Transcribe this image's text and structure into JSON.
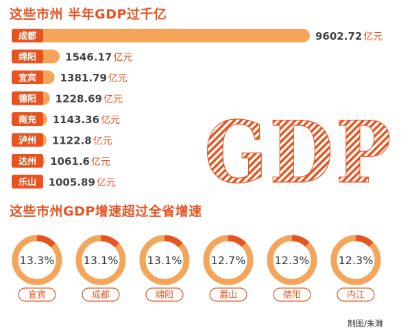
{
  "chart_data": [
    {
      "type": "bar",
      "orientation": "horizontal",
      "title": "这些市州 半年GDP过千亿",
      "categories": [
        "成都",
        "绵阳",
        "宜宾",
        "德阳",
        "南充",
        "泸州",
        "达州",
        "乐山"
      ],
      "values": [
        9602.72,
        1546.17,
        1381.79,
        1228.69,
        1143.36,
        1122.8,
        1061.6,
        1005.89
      ],
      "value_labels": [
        "9602.72",
        "1546.17",
        "1381.79",
        "1228.69",
        "1143.36",
        "1122.8",
        "1061.6",
        "1005.89"
      ],
      "unit": "亿元",
      "bar_color": "#f5a55a",
      "label_box_color": "#e8531f"
    },
    {
      "type": "pie",
      "variant": "donut",
      "title": "这些市州GDP增速超过全省增速",
      "categories": [
        "宜宾",
        "成都",
        "绵阳",
        "眉山",
        "德阳",
        "内江"
      ],
      "values": [
        13.3,
        13.1,
        13.1,
        12.7,
        12.3,
        12.3
      ],
      "value_labels": [
        "13.3%",
        "13.1%",
        "13.1%",
        "12.7%",
        "12.3%",
        "12.3%"
      ],
      "ring_color": "#f5a55a",
      "highlight_color": "#e8531f"
    }
  ],
  "decoration": {
    "text": "GDP",
    "color": "#e8531f"
  },
  "credit": "制图/朱濉"
}
